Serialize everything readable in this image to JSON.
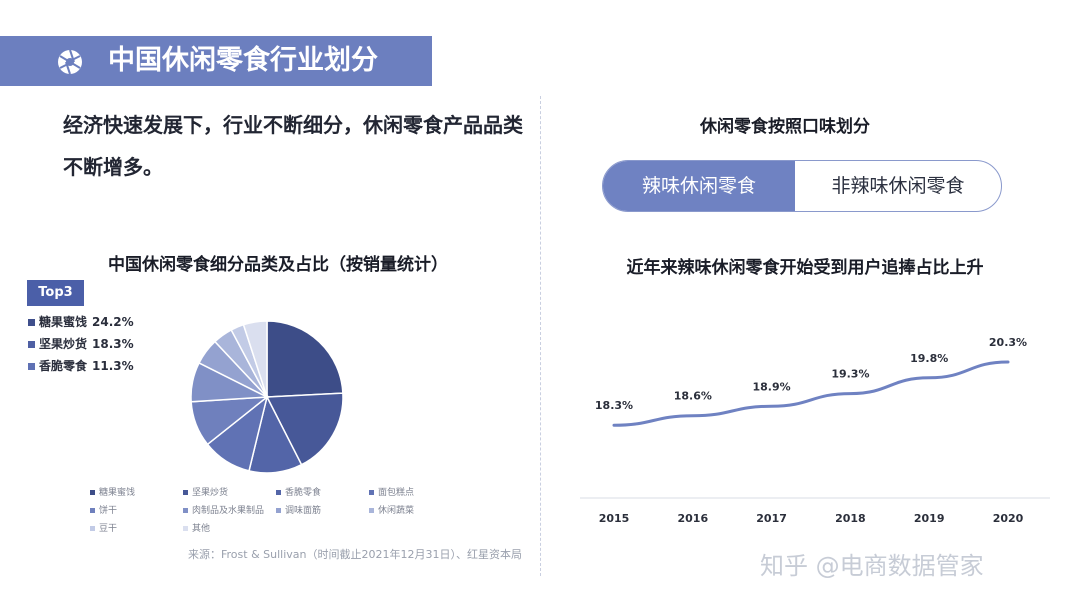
{
  "header": {
    "title": "中国休闲零食行业划分",
    "icon": "aperture-icon"
  },
  "intro": {
    "text": "经济快速发展下，行业不断细分，休闲零食产品品类不断增多。"
  },
  "left_chart": {
    "title": "中国休闲零食细分品类及占比（按销量统计）",
    "top3_badge": "Top3",
    "top3": [
      {
        "label": "糖果蜜饯",
        "value": "24.2%",
        "color": "#3f4f8c"
      },
      {
        "label": "坚果炒货",
        "value": "18.3%",
        "color": "#4f60a4"
      },
      {
        "label": "香脆零食",
        "value": "11.3%",
        "color": "#5f71b4"
      }
    ],
    "source": "来源：Frost & Sullivan（时间截止2021年12月31日）、红星资本局"
  },
  "right_panel": {
    "title": "休闲零食按照口味划分",
    "toggle_left": "辣味休闲零食",
    "toggle_right": "非辣味休闲零食",
    "line_title": "近年来辣味休闲零食开始受到用户追捧占比上升"
  },
  "watermark": "知乎 @电商数据管家",
  "chart_data": [
    {
      "type": "pie",
      "title": "中国休闲零食细分品类及占比（按销量统计）",
      "categories": [
        "糖果蜜饯",
        "坚果炒货",
        "香脆零食",
        "面包糕点",
        "饼干",
        "肉制品及水果制品",
        "调味面筋",
        "休闲蔬菜",
        "豆干",
        "其他"
      ],
      "values": [
        24.2,
        18.3,
        11.3,
        10.5,
        9.7,
        8.4,
        5.6,
        4.2,
        2.8,
        5.0
      ],
      "colors": [
        "#3d4d88",
        "#475898",
        "#5365a8",
        "#6072b4",
        "#6f80bd",
        "#8090c6",
        "#94a2d0",
        "#a9b5da",
        "#c2cbe6",
        "#dadfef"
      ],
      "legend_position": "bottom"
    },
    {
      "type": "line",
      "title": "近年来辣味休闲零食开始受到用户追捧占比上升",
      "x": [
        "2015",
        "2016",
        "2017",
        "2018",
        "2019",
        "2020"
      ],
      "series": [
        {
          "values": [
            18.3,
            18.6,
            18.9,
            19.3,
            19.8,
            20.3
          ],
          "labels": [
            "18.3%",
            "18.6%",
            "18.9%",
            "19.3%",
            "19.8%",
            "20.3%"
          ]
        }
      ],
      "ylim": [
        16.0,
        21.5
      ],
      "color": "#6f82c2",
      "grid": false
    }
  ]
}
